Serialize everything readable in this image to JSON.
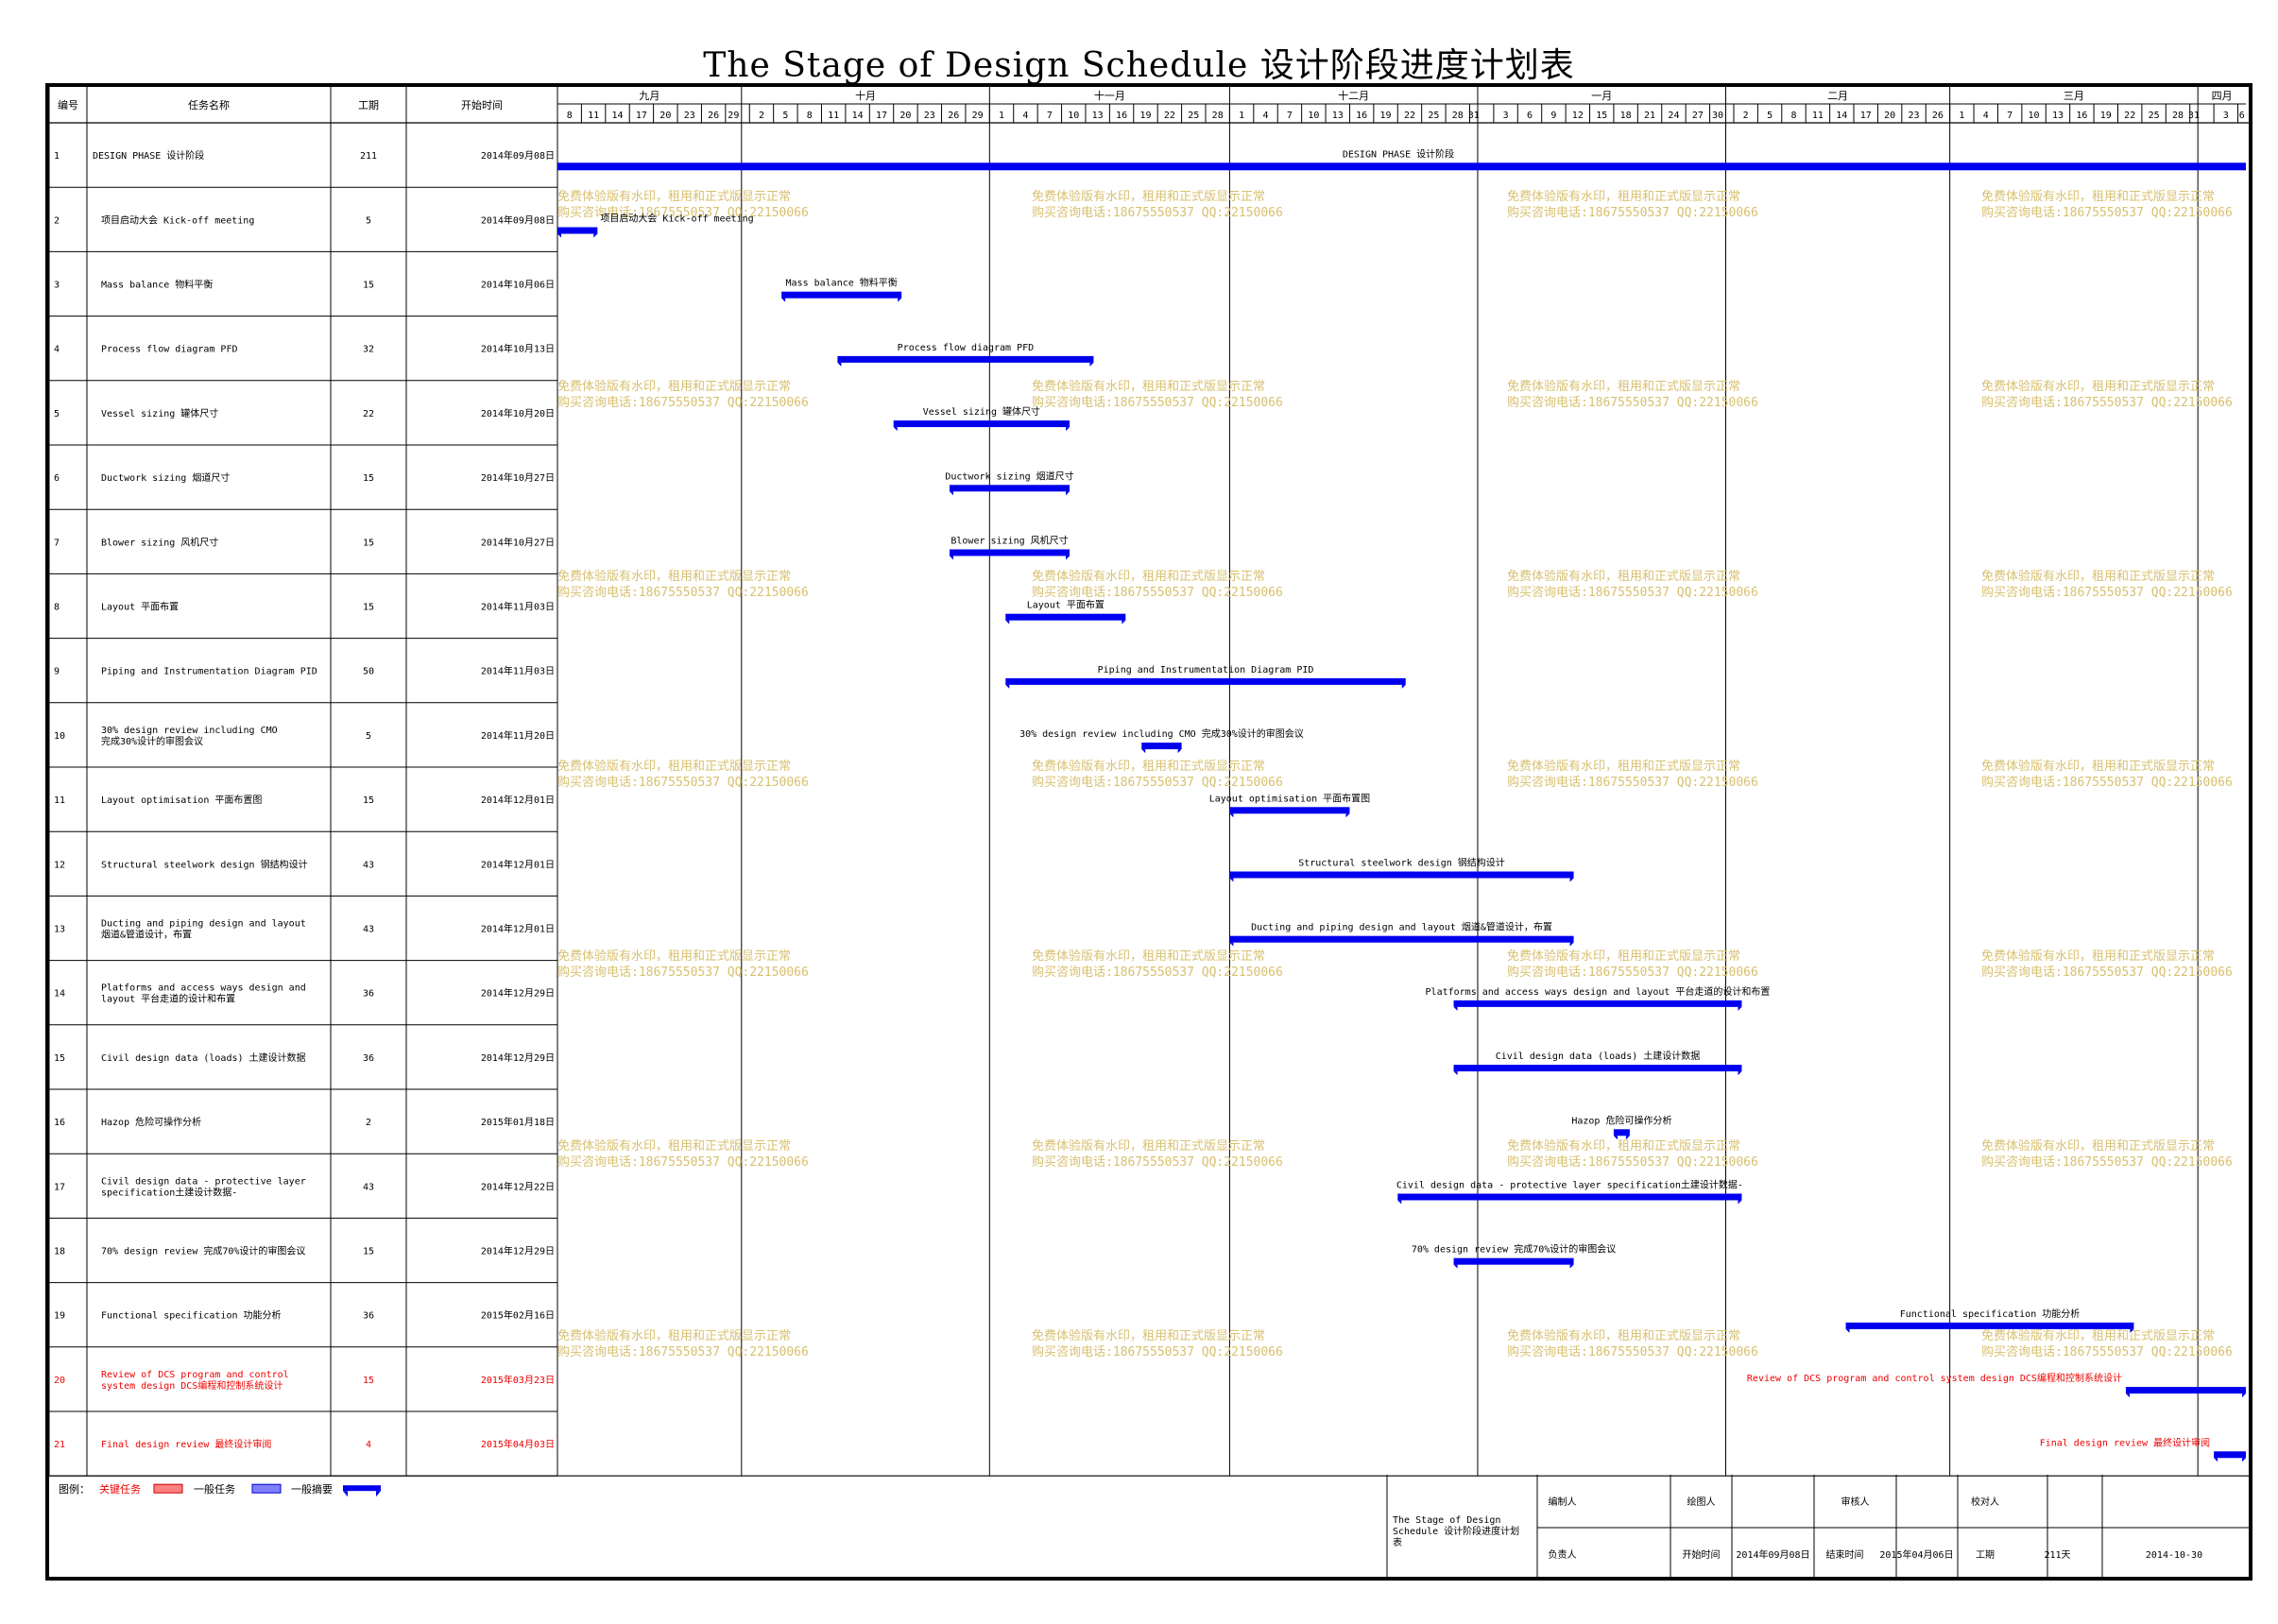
{
  "title": "The Stage of Design Schedule 设计阶段进度计划表",
  "headers": {
    "id": "编号",
    "name": "任务名称",
    "duration": "工期",
    "start": "开始时间"
  },
  "months": [
    {
      "label": "九月",
      "days": [
        "8",
        "11",
        "14",
        "17",
        "20",
        "23",
        "26",
        "29"
      ]
    },
    {
      "label": "十月",
      "days": [
        "2",
        "5",
        "8",
        "11",
        "14",
        "17",
        "20",
        "23",
        "26",
        "29"
      ]
    },
    {
      "label": "十一月",
      "days": [
        "1",
        "4",
        "7",
        "10",
        "13",
        "16",
        "19",
        "22",
        "25",
        "28"
      ]
    },
    {
      "label": "十二月",
      "days": [
        "1",
        "4",
        "7",
        "10",
        "13",
        "16",
        "19",
        "22",
        "25",
        "28",
        "31"
      ]
    },
    {
      "label": "一月",
      "days": [
        "3",
        "6",
        "9",
        "12",
        "15",
        "18",
        "21",
        "24",
        "27",
        "30"
      ]
    },
    {
      "label": "二月",
      "days": [
        "2",
        "5",
        "8",
        "11",
        "14",
        "17",
        "20",
        "23",
        "26"
      ]
    },
    {
      "label": "三月",
      "days": [
        "1",
        "4",
        "7",
        "10",
        "13",
        "16",
        "19",
        "22",
        "25",
        "28",
        "31"
      ]
    },
    {
      "label": "四月",
      "days": [
        "3",
        "6"
      ]
    }
  ],
  "watermark": {
    "line1": "免费体验版有水印，租用和正式版显示正常",
    "line2": "购买咨询电话:18675550537 QQ:22150066"
  },
  "chart_data": {
    "type": "gantt",
    "title": "The Stage of Design Schedule 设计阶段进度计划表",
    "axis_start": "2014-09-08",
    "axis_end": "2015-04-06",
    "tasks": [
      {
        "id": "1",
        "name": "DESIGN PHASE 设计阶段",
        "duration": "211",
        "start": "2014年09月08日",
        "start_iso": "2014-09-08",
        "days": 211,
        "bar_label": "DESIGN PHASE 设计阶段",
        "critical": false
      },
      {
        "id": "2",
        "name": "项目启动大会 Kick-off meeting",
        "duration": "5",
        "start": "2014年09月08日",
        "start_iso": "2014-09-08",
        "days": 5,
        "bar_label": "项目启动大会 Kick-off meeting",
        "critical": false
      },
      {
        "id": "3",
        "name": "Mass balance 物料平衡",
        "duration": "15",
        "start": "2014年10月06日",
        "start_iso": "2014-10-06",
        "days": 15,
        "bar_label": "Mass balance 物料平衡",
        "critical": false
      },
      {
        "id": "4",
        "name": "Process flow diagram PFD",
        "duration": "32",
        "start": "2014年10月13日",
        "start_iso": "2014-10-13",
        "days": 32,
        "bar_label": "Process flow diagram PFD",
        "critical": false
      },
      {
        "id": "5",
        "name": "Vessel sizing 罐体尺寸",
        "duration": "22",
        "start": "2014年10月20日",
        "start_iso": "2014-10-20",
        "days": 22,
        "bar_label": "Vessel sizing 罐体尺寸",
        "critical": false
      },
      {
        "id": "6",
        "name": "Ductwork sizing 烟道尺寸",
        "duration": "15",
        "start": "2014年10月27日",
        "start_iso": "2014-10-27",
        "days": 15,
        "bar_label": "Ductwork sizing 烟道尺寸",
        "critical": false
      },
      {
        "id": "7",
        "name": "Blower sizing 风机尺寸",
        "duration": "15",
        "start": "2014年10月27日",
        "start_iso": "2014-10-27",
        "days": 15,
        "bar_label": "Blower sizing 风机尺寸",
        "critical": false
      },
      {
        "id": "8",
        "name": "Layout 平面布置",
        "duration": "15",
        "start": "2014年11月03日",
        "start_iso": "2014-11-03",
        "days": 15,
        "bar_label": "Layout 平面布置",
        "critical": false
      },
      {
        "id": "9",
        "name": "Piping and Instrumentation Diagram PID",
        "duration": "50",
        "start": "2014年11月03日",
        "start_iso": "2014-11-03",
        "days": 50,
        "bar_label": "Piping and Instrumentation Diagram PID",
        "critical": false
      },
      {
        "id": "10",
        "name": "30% design review including CMO 完成30%设计的审图会议",
        "duration": "5",
        "start": "2014年11月20日",
        "start_iso": "2014-11-20",
        "days": 5,
        "bar_label": "30% design review including CMO 完成30%设计的审图会议",
        "critical": false
      },
      {
        "id": "11",
        "name": "Layout optimisation 平面布置图",
        "duration": "15",
        "start": "2014年12月01日",
        "start_iso": "2014-12-01",
        "days": 15,
        "bar_label": "Layout optimisation 平面布置图",
        "critical": false
      },
      {
        "id": "12",
        "name": "Structural steelwork design 钢结构设计",
        "duration": "43",
        "start": "2014年12月01日",
        "start_iso": "2014-12-01",
        "days": 43,
        "bar_label": "Structural steelwork design 钢结构设计",
        "critical": false
      },
      {
        "id": "13",
        "name": "Ducting and piping design and layout 烟道&管道设计，布置",
        "duration": "43",
        "start": "2014年12月01日",
        "start_iso": "2014-12-01",
        "days": 43,
        "bar_label": "Ducting and piping design and layout 烟道&管道设计，布置",
        "critical": false
      },
      {
        "id": "14",
        "name": "Platforms and access ways design and layout 平台走道的设计和布置",
        "duration": "36",
        "start": "2014年12月29日",
        "start_iso": "2014-12-29",
        "days": 36,
        "bar_label": "Platforms and access ways design and layout 平台走道的设计和布置",
        "critical": false
      },
      {
        "id": "15",
        "name": "Civil design data (loads) 土建设计数据",
        "duration": "36",
        "start": "2014年12月29日",
        "start_iso": "2014-12-29",
        "days": 36,
        "bar_label": "Civil design data (loads) 土建设计数据",
        "critical": false
      },
      {
        "id": "16",
        "name": "Hazop 危险可操作分析",
        "duration": "2",
        "start": "2015年01月18日",
        "start_iso": "2015-01-18",
        "days": 2,
        "bar_label": "Hazop 危险可操作分析",
        "critical": false
      },
      {
        "id": "17",
        "name": "Civil design data - protective layer specification土建设计数据-",
        "duration": "43",
        "start": "2014年12月22日",
        "start_iso": "2014-12-22",
        "days": 43,
        "bar_label": "Civil design data - protective layer specification土建设计数据-",
        "critical": false
      },
      {
        "id": "18",
        "name": "70% design review 完成70%设计的审图会议",
        "duration": "15",
        "start": "2014年12月29日",
        "start_iso": "2014-12-29",
        "days": 15,
        "bar_label": "70% design review 完成70%设计的审图会议",
        "critical": false
      },
      {
        "id": "19",
        "name": "Functional specification 功能分析",
        "duration": "36",
        "start": "2015年02月16日",
        "start_iso": "2015-02-16",
        "days": 36,
        "bar_label": "Functional specification 功能分析",
        "critical": false
      },
      {
        "id": "20",
        "name": "Review of DCS program and control system design DCS编程和控制系统设计",
        "duration": "15",
        "start": "2015年03月23日",
        "start_iso": "2015-03-23",
        "days": 15,
        "bar_label": "Review of DCS program and control system design DCS编程和控制系统设计",
        "critical": true
      },
      {
        "id": "21",
        "name": "Final design review 最终设计审阅",
        "duration": "4",
        "start": "2015年04月03日",
        "start_iso": "2015-04-03",
        "days": 4,
        "bar_label": "Final design review 最终设计审阅",
        "critical": true
      }
    ],
    "colors": {
      "bar": "#0000ee",
      "critical_text": "#ee0000",
      "watermark": "#d8c070"
    }
  },
  "legend": {
    "label": "图例：",
    "critical": "关键任务",
    "normal": "一般任务",
    "summary": "一般摘要"
  },
  "footer": {
    "project": "The Stage of Design Schedule 设计阶段进度计划表",
    "editor": "编制人",
    "drawer": "绘图人",
    "reviewer": "审核人",
    "checker": "校对人",
    "owner": "负责人",
    "start_label": "开始时间",
    "start_value": "2014年09月08日",
    "end_label": "结束时间",
    "end_value": "2015年04月06日",
    "duration_label": "工期",
    "duration_value": "211天",
    "date": "2014-10-30"
  }
}
